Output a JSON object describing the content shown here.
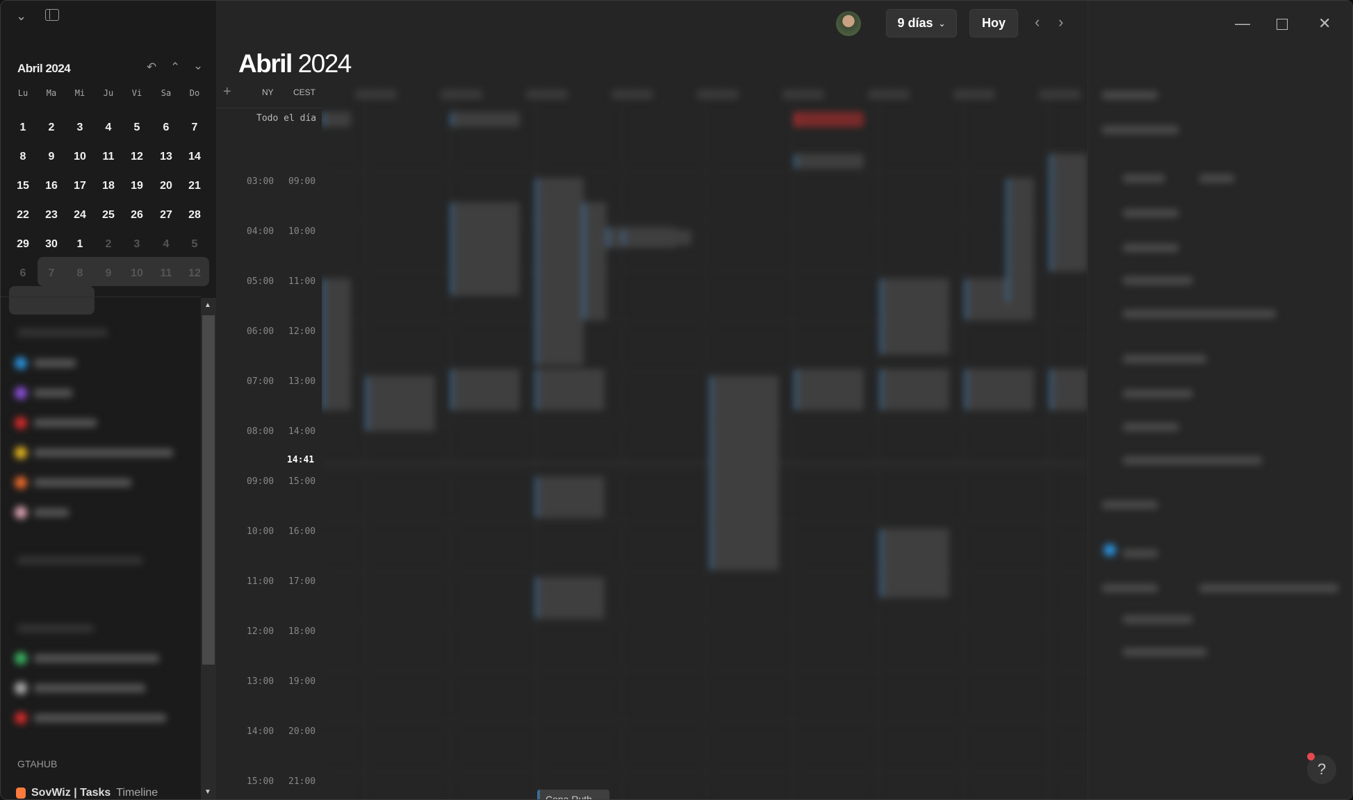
{
  "mini_calendar": {
    "title": "Abril 2024",
    "weekdays": [
      "Lu",
      "Ma",
      "Mi",
      "Ju",
      "Vi",
      "Sa",
      "Do"
    ],
    "weeks": [
      [
        "1",
        "2",
        "3",
        "4",
        "5",
        "6",
        "7"
      ],
      [
        "8",
        "9",
        "10",
        "11",
        "12",
        "13",
        "14"
      ],
      [
        "15",
        "16",
        "17",
        "18",
        "19",
        "20",
        "21"
      ],
      [
        "22",
        "23",
        "24",
        "25",
        "26",
        "27",
        "28"
      ],
      [
        "29",
        "30",
        "1",
        "2",
        "3",
        "4",
        "5"
      ],
      [
        "6",
        "7",
        "8",
        "9",
        "10",
        "11",
        "12"
      ]
    ],
    "selected_range": "23 Apr – 1 May"
  },
  "sidebar": {
    "section_label": "GTAHUB",
    "task_item": {
      "name": "SovWiz | Tasks",
      "suffix": "Timeline",
      "color": "#ff7a3d"
    },
    "calendar_colors": [
      "#2a8fd8",
      "#8a4fd8",
      "#d02a2a",
      "#e0b020",
      "#e86a2a",
      "#d8a0b0"
    ],
    "task_colors": [
      "#3ab060",
      "#aaaaaa",
      "#d02a2a"
    ]
  },
  "header": {
    "title_bold": "Abril",
    "title_year": "2024",
    "view_label": "9 días",
    "today_label": "Hoy"
  },
  "timegrid": {
    "timezones": [
      "NY",
      "CEST"
    ],
    "all_day_label": "Todo el día",
    "hours_ny": [
      "03:00",
      "04:00",
      "05:00",
      "06:00",
      "07:00",
      "08:00",
      "09:00",
      "10:00",
      "11:00",
      "12:00",
      "13:00",
      "14:00",
      "15:00"
    ],
    "hours_cest": [
      "09:00",
      "10:00",
      "11:00",
      "12:00",
      "13:00",
      "14:00",
      "15:00",
      "16:00",
      "17:00",
      "18:00",
      "19:00",
      "20:00",
      "21:00"
    ],
    "current_time": "14:41",
    "visible_event": "Cena Ruth"
  },
  "help_label": "?"
}
